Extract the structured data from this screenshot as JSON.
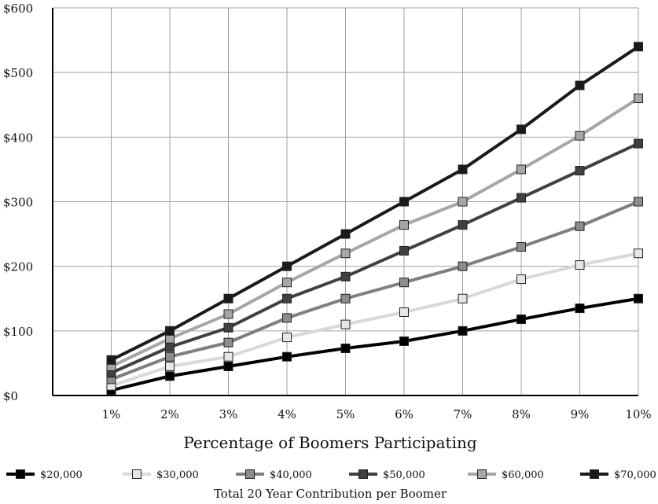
{
  "chart_data": {
    "type": "line",
    "categories": [
      "1%",
      "2%",
      "3%",
      "4%",
      "5%",
      "6%",
      "7%",
      "8%",
      "9%",
      "10%"
    ],
    "xlabel": "Percentage of Boomers Participating",
    "ylabel": "",
    "ylim": [
      0,
      600
    ],
    "yticks": [
      "$0",
      "$100",
      "$200",
      "$300",
      "$400",
      "$500",
      "$600"
    ],
    "ytick_values": [
      0,
      100,
      200,
      300,
      400,
      500,
      600
    ],
    "grid": true,
    "legend_position": "bottom",
    "legend_caption": "Total 20 Year Contribution per Boomer",
    "series": [
      {
        "name": "$20,000",
        "color": "#000000",
        "marker_fill": "#000000",
        "values": [
          8,
          30,
          45,
          60,
          73,
          84,
          100,
          118,
          135,
          150
        ]
      },
      {
        "name": "$30,000",
        "color": "#d9d9d9",
        "marker_fill": "#e6e6e6",
        "values": [
          15,
          45,
          60,
          90,
          110,
          129,
          150,
          180,
          202,
          220
        ]
      },
      {
        "name": "$40,000",
        "color": "#7f7f7f",
        "marker_fill": "#8c8c8c",
        "values": [
          25,
          60,
          82,
          120,
          150,
          175,
          200,
          230,
          262,
          300
        ]
      },
      {
        "name": "$50,000",
        "color": "#404040",
        "marker_fill": "#404040",
        "values": [
          35,
          75,
          105,
          150,
          184,
          224,
          264,
          306,
          348,
          390
        ]
      },
      {
        "name": "$60,000",
        "color": "#a6a6a6",
        "marker_fill": "#a6a6a6",
        "values": [
          45,
          88,
          126,
          175,
          220,
          264,
          300,
          350,
          402,
          460
        ]
      },
      {
        "name": "$70,000",
        "color": "#1a1a1a",
        "marker_fill": "#1a1a1a",
        "values": [
          55,
          100,
          150,
          200,
          250,
          300,
          350,
          412,
          480,
          540
        ]
      }
    ]
  }
}
